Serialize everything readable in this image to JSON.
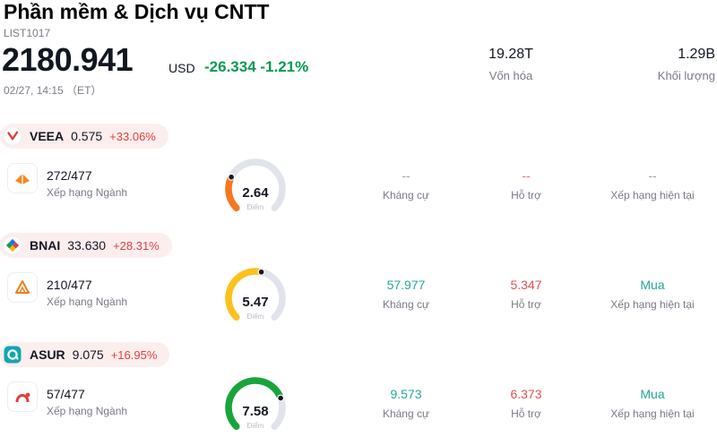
{
  "header": {
    "title": "Phần mềm & Dịch vụ CNTT",
    "list_id": "LIST1017",
    "price": "2180.941",
    "currency": "USD",
    "change": "-26.334 -1.21%",
    "timestamp": "02/27, 14:15 （ET）",
    "market_cap": {
      "value": "19.28T",
      "label": "Vốn hóa"
    },
    "volume": {
      "value": "1.29B",
      "label": "Khối lượng"
    }
  },
  "labels": {
    "industry_rank": "Xếp hạng Ngành",
    "score": "Điểm",
    "resistance": "Kháng cự",
    "support": "Hỗ trợ",
    "current_rating": "Xếp hạng hiện tại"
  },
  "colors": {
    "up": "#e23f3f",
    "down": "#089950",
    "teal": "#26a69a",
    "support_red": "#e0524e",
    "muted": "#9aa0aa",
    "gauge_track": "#e1e3eb"
  },
  "stocks": [
    {
      "ticker": "VEEA",
      "price": "0.575",
      "change_pct": "+33.06%",
      "industry_rank": "272/477",
      "score": 2.64,
      "score_display": "2.64",
      "gauge_color": "#f5771e",
      "resistance": "--",
      "resistance_color": "#9aa0aa",
      "support": "--",
      "support_color": "#e57373",
      "rating": "--",
      "rating_color": "#9aa0aa"
    },
    {
      "ticker": "BNAI",
      "price": "33.630",
      "change_pct": "+28.31%",
      "industry_rank": "210/477",
      "score": 5.47,
      "score_display": "5.47",
      "gauge_color": "#fbc21d",
      "resistance": "57.977",
      "resistance_color": "#26a69a",
      "support": "5.347",
      "support_color": "#e0524e",
      "rating": "Mua",
      "rating_color": "#26a69a"
    },
    {
      "ticker": "ASUR",
      "price": "9.075",
      "change_pct": "+16.95%",
      "industry_rank": "57/477",
      "score": 7.58,
      "score_display": "7.58",
      "gauge_color": "#16a53a",
      "resistance": "9.573",
      "resistance_color": "#26a69a",
      "support": "6.373",
      "support_color": "#e0524e",
      "rating": "Mua",
      "rating_color": "#26a69a"
    }
  ]
}
